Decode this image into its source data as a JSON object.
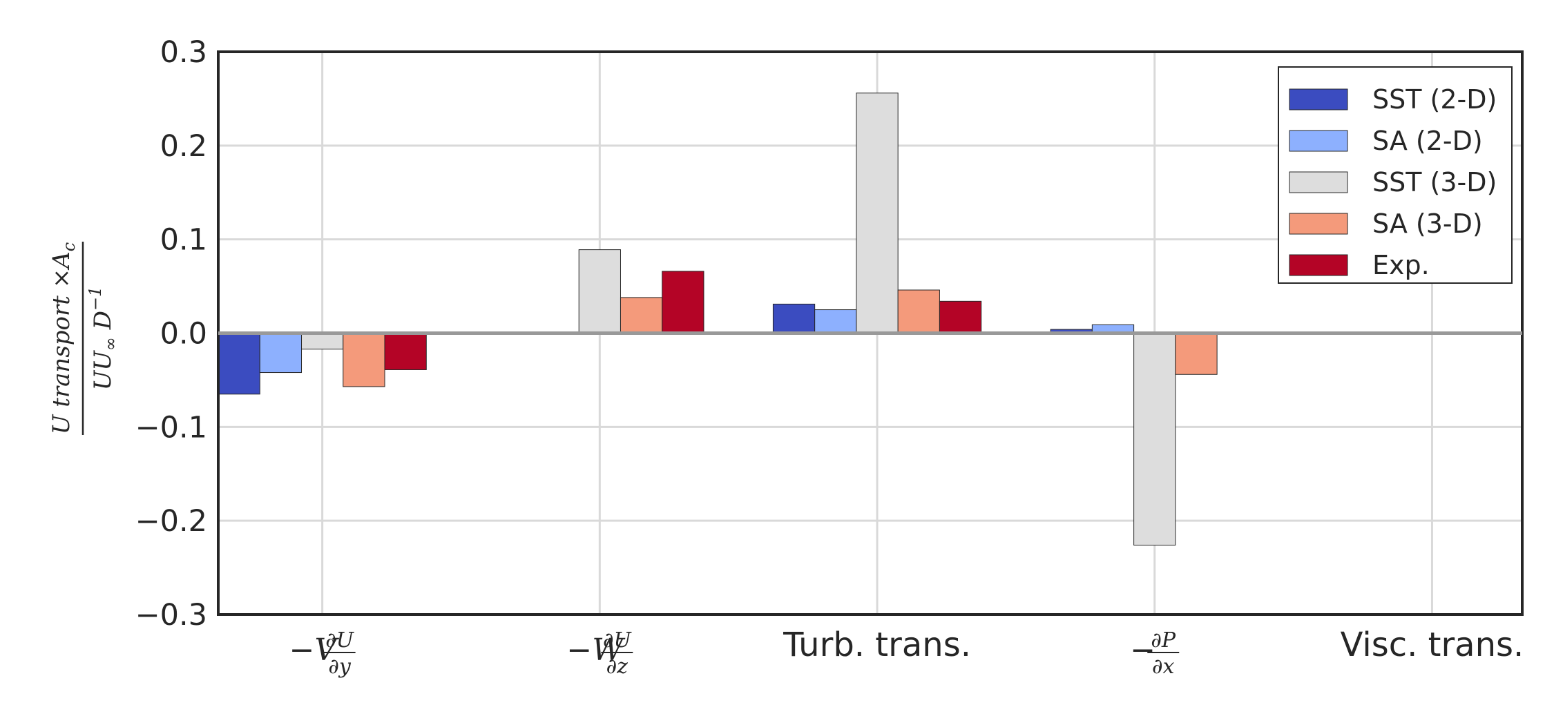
{
  "chart_data": {
    "type": "bar",
    "categories": [
      "−V∂U/∂y",
      "−W∂U/∂z",
      "Turb. trans.",
      "−∂P/∂x",
      "Visc. trans."
    ],
    "category_parts": [
      {
        "kind": "frac",
        "prefix": "−V",
        "num": "∂U",
        "den": "∂y"
      },
      {
        "kind": "frac",
        "prefix": "−W",
        "num": "∂U",
        "den": "∂z"
      },
      {
        "kind": "text",
        "text": "Turb. trans."
      },
      {
        "kind": "frac",
        "prefix": "−",
        "num": "∂P",
        "den": "∂x"
      },
      {
        "kind": "text",
        "text": "Visc. trans."
      }
    ],
    "series": [
      {
        "name": "SST (2-D)",
        "color": "#3b4cc0",
        "values": [
          -0.065,
          0.0,
          0.031,
          0.004,
          0.0
        ]
      },
      {
        "name": "SA (2-D)",
        "color": "#8db0fe",
        "values": [
          -0.042,
          0.0,
          0.025,
          0.009,
          0.0
        ]
      },
      {
        "name": "SST (3-D)",
        "color": "#dddddd",
        "values": [
          -0.017,
          0.089,
          0.256,
          -0.226,
          0.0
        ]
      },
      {
        "name": "SA (3-D)",
        "color": "#f49a7b",
        "values": [
          -0.057,
          0.038,
          0.046,
          -0.044,
          0.0
        ]
      },
      {
        "name": "Exp.",
        "color": "#b40426",
        "values": [
          -0.039,
          0.066,
          0.034,
          0.0,
          0.0
        ]
      }
    ],
    "ylim": [
      -0.3,
      0.3
    ],
    "yticks": [
      "0.3",
      "0.2",
      "0.1",
      "0.0",
      "−0.1",
      "−0.2",
      "−0.3"
    ],
    "ytick_values": [
      0.3,
      0.2,
      0.1,
      0.0,
      -0.1,
      -0.2,
      -0.3
    ],
    "ylabel": {
      "num": "U transport ×A",
      "num_sub": "c",
      "den": "UU",
      "den_sub": "∞",
      "den_tail": " D",
      "den_sup": "−1"
    },
    "xlabel": "",
    "title": "",
    "grid": true,
    "legend_position": "top-right"
  }
}
